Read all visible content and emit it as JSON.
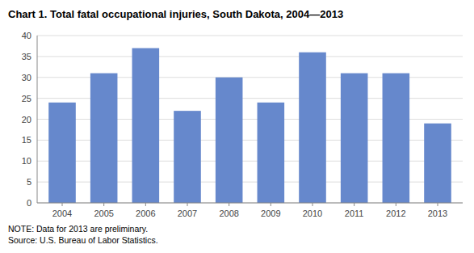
{
  "chart_data": {
    "type": "bar",
    "title": "Chart 1. Total fatal occupational injuries, South Dakota, 2004—2013",
    "categories": [
      "2004",
      "2005",
      "2006",
      "2007",
      "2008",
      "2009",
      "2010",
      "2011",
      "2012",
      "2013"
    ],
    "values": [
      24,
      31,
      37,
      22,
      30,
      24,
      36,
      31,
      31,
      19
    ],
    "color": "#6688cc",
    "ylim": [
      0,
      40
    ],
    "yticks": [
      0,
      5,
      10,
      15,
      20,
      25,
      30,
      35,
      40
    ],
    "grid": true,
    "annotations": [
      "NOTE: Data for 2013 are preliminary.",
      "Source: U.S. Bureau of Labor Statistics."
    ]
  }
}
